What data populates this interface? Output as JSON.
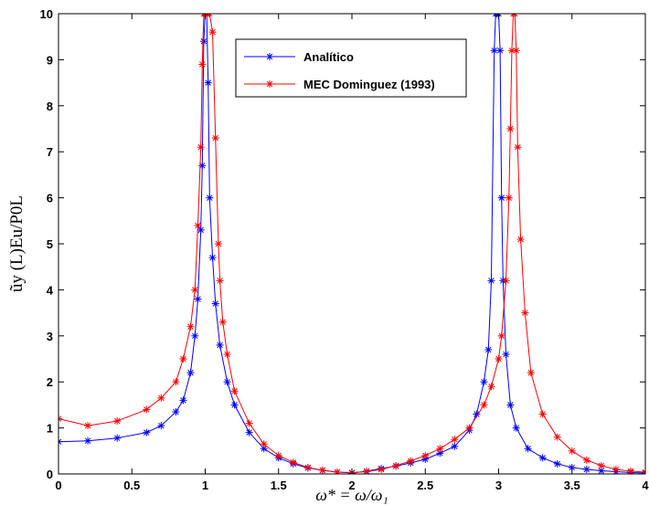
{
  "chart_data": {
    "type": "line",
    "xlabel": "ω* = ω/ω₁",
    "ylabel": "ũy (L)Eu/P0L",
    "xlim": [
      0,
      4
    ],
    "ylim": [
      0,
      10
    ],
    "xticks": [
      "0",
      "0.5",
      "1",
      "1.5",
      "2",
      "2.5",
      "3",
      "3.5",
      "4"
    ],
    "yticks": [
      "0",
      "1",
      "2",
      "3",
      "4",
      "5",
      "6",
      "7",
      "8",
      "9",
      "10"
    ],
    "grid": false,
    "legend_position": "top-right",
    "marker": "asterisk",
    "series": [
      {
        "name": "Analítico",
        "color": "#0000ff",
        "x": [
          0,
          0.2,
          0.4,
          0.6,
          0.7,
          0.8,
          0.85,
          0.9,
          0.93,
          0.95,
          0.97,
          0.98,
          0.99,
          1.0,
          1.01,
          1.02,
          1.03,
          1.05,
          1.07,
          1.1,
          1.15,
          1.2,
          1.3,
          1.4,
          1.5,
          1.6,
          1.7,
          1.8,
          1.9,
          2.0,
          2.1,
          2.2,
          2.3,
          2.4,
          2.5,
          2.6,
          2.7,
          2.8,
          2.85,
          2.9,
          2.93,
          2.95,
          2.97,
          2.98,
          2.99,
          3.0,
          3.01,
          3.02,
          3.03,
          3.05,
          3.08,
          3.12,
          3.2,
          3.3,
          3.4,
          3.5,
          3.6,
          3.7,
          3.8,
          3.9,
          4.0
        ],
        "y": [
          0.7,
          0.72,
          0.78,
          0.9,
          1.05,
          1.35,
          1.6,
          2.2,
          3.0,
          3.8,
          5.3,
          6.7,
          9.4,
          10,
          10,
          8.5,
          6.0,
          4.7,
          3.7,
          2.8,
          2.0,
          1.5,
          0.9,
          0.55,
          0.35,
          0.22,
          0.13,
          0.08,
          0.04,
          0.02,
          0.06,
          0.12,
          0.17,
          0.24,
          0.32,
          0.45,
          0.6,
          0.95,
          1.3,
          2.0,
          2.7,
          4.2,
          9.2,
          10,
          10,
          10,
          9.2,
          6.0,
          4.2,
          2.6,
          1.5,
          1.0,
          0.55,
          0.35,
          0.22,
          0.14,
          0.1,
          0.07,
          0.05,
          0.03,
          0.02
        ]
      },
      {
        "name": "MEC Dominguez (1993)",
        "color": "#ff0000",
        "x": [
          0,
          0.2,
          0.4,
          0.6,
          0.7,
          0.8,
          0.85,
          0.9,
          0.93,
          0.95,
          0.97,
          0.98,
          0.99,
          1.0,
          1.01,
          1.03,
          1.05,
          1.07,
          1.09,
          1.1,
          1.12,
          1.15,
          1.2,
          1.3,
          1.4,
          1.5,
          1.6,
          1.7,
          1.8,
          1.9,
          2.0,
          2.1,
          2.2,
          2.3,
          2.4,
          2.5,
          2.6,
          2.7,
          2.8,
          2.9,
          2.95,
          3.0,
          3.02,
          3.05,
          3.07,
          3.08,
          3.09,
          3.1,
          3.11,
          3.12,
          3.13,
          3.15,
          3.18,
          3.22,
          3.3,
          3.4,
          3.5,
          3.6,
          3.7,
          3.8,
          3.9,
          4.0
        ],
        "y": [
          1.2,
          1.05,
          1.15,
          1.4,
          1.65,
          2.0,
          2.5,
          3.2,
          4.0,
          5.4,
          7.1,
          8.9,
          10,
          10,
          10,
          10,
          9.6,
          7.3,
          5.0,
          4.2,
          3.3,
          2.6,
          1.8,
          1.1,
          0.65,
          0.4,
          0.25,
          0.14,
          0.08,
          0.04,
          0.03,
          0.05,
          0.1,
          0.18,
          0.28,
          0.4,
          0.55,
          0.75,
          1.0,
          1.5,
          1.9,
          2.5,
          3.0,
          4.2,
          6.0,
          7.5,
          9.2,
          10,
          10,
          9.2,
          7.1,
          5.1,
          3.5,
          2.2,
          1.3,
          0.8,
          0.5,
          0.3,
          0.18,
          0.1,
          0.06,
          0.04
        ]
      }
    ]
  }
}
